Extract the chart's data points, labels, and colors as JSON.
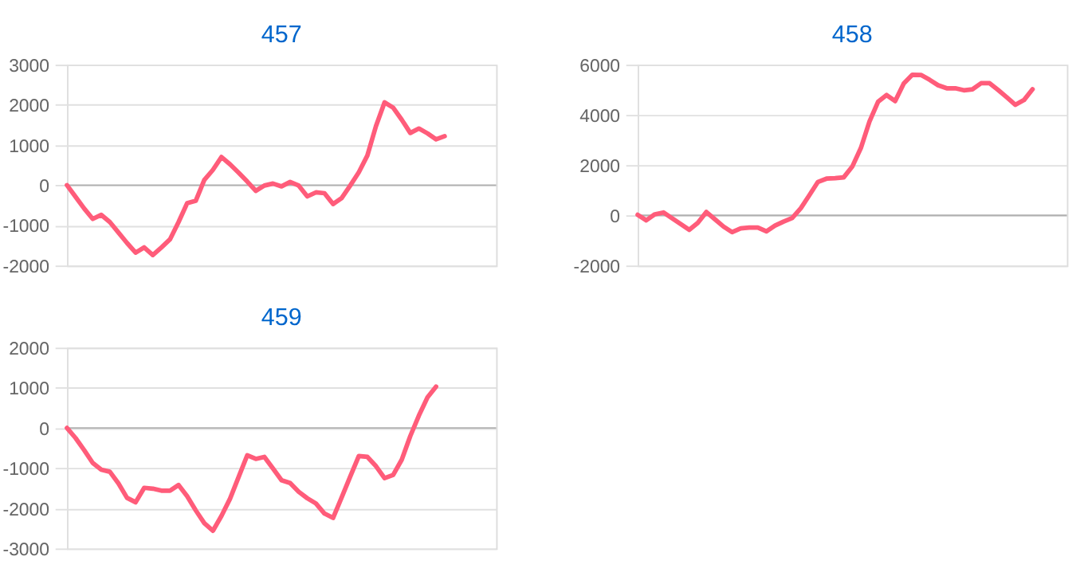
{
  "chart_data": [
    {
      "type": "line",
      "title": "457",
      "categories": [
        null,
        null,
        null,
        null,
        null,
        null,
        null,
        null,
        null,
        null,
        null,
        null,
        null,
        null,
        null,
        null,
        null,
        null,
        null,
        null,
        null,
        null,
        null,
        null,
        null,
        null,
        null,
        null,
        null,
        null,
        null,
        null,
        null,
        null,
        null,
        null,
        null,
        null,
        null,
        null,
        null,
        null,
        null,
        null,
        null,
        null,
        null,
        null,
        null,
        null,
        null
      ],
      "series": [
        {
          "color": "#ff5c7a",
          "values": [
            0,
            -290,
            -580,
            -840,
            -740,
            -920,
            -1180,
            -1440,
            -1680,
            -1550,
            -1740,
            -1550,
            -1350,
            -920,
            -450,
            -390,
            130,
            380,
            700,
            520,
            310,
            90,
            -140,
            -10,
            40,
            -30,
            80,
            -10,
            -280,
            -180,
            -200,
            -470,
            -320,
            -10,
            320,
            740,
            1470,
            2060,
            1930,
            1630,
            1300,
            1410,
            1290,
            1140,
            1220,
            null,
            null,
            null,
            null,
            null,
            null
          ]
        }
      ],
      "ylim": [
        -2000,
        3000
      ],
      "yticks": [
        -2000,
        -1000,
        0,
        1000,
        2000,
        3000
      ],
      "grid": "y",
      "tick_labels": "y",
      "marker": "none",
      "line_style": "solid",
      "ref_lines": [
        {
          "axis": "y",
          "value": 0,
          "color": "#b0b0b0"
        }
      ]
    },
    {
      "type": "line",
      "title": "458",
      "categories": [
        null,
        null,
        null,
        null,
        null,
        null,
        null,
        null,
        null,
        null,
        null,
        null,
        null,
        null,
        null,
        null,
        null,
        null,
        null,
        null,
        null,
        null,
        null,
        null,
        null,
        null,
        null,
        null,
        null,
        null,
        null,
        null,
        null,
        null,
        null,
        null,
        null,
        null,
        null,
        null,
        null,
        null,
        null,
        null,
        null,
        null,
        null,
        null,
        null,
        null,
        null
      ],
      "series": [
        {
          "color": "#ff5c7a",
          "values": [
            20,
            -200,
            40,
            110,
            -120,
            -350,
            -580,
            -300,
            130,
            -160,
            -450,
            -670,
            -520,
            -490,
            -490,
            -640,
            -410,
            -250,
            -110,
            280,
            800,
            1330,
            1460,
            1480,
            1510,
            1940,
            2680,
            3730,
            4520,
            4790,
            4550,
            5250,
            5600,
            5590,
            5400,
            5180,
            5060,
            5060,
            4980,
            5020,
            5260,
            5260,
            4990,
            4700,
            4400,
            4590,
            5020,
            null,
            null,
            null,
            null
          ]
        }
      ],
      "ylim": [
        -2000,
        6000
      ],
      "yticks": [
        -2000,
        0,
        2000,
        4000,
        6000
      ],
      "grid": "y",
      "tick_labels": "y",
      "marker": "none",
      "line_style": "solid",
      "ref_lines": [
        {
          "axis": "y",
          "value": 0,
          "color": "#b0b0b0"
        }
      ]
    },
    {
      "type": "line",
      "title": "459",
      "categories": [
        null,
        null,
        null,
        null,
        null,
        null,
        null,
        null,
        null,
        null,
        null,
        null,
        null,
        null,
        null,
        null,
        null,
        null,
        null,
        null,
        null,
        null,
        null,
        null,
        null,
        null,
        null,
        null,
        null,
        null,
        null,
        null,
        null,
        null,
        null,
        null,
        null,
        null,
        null,
        null,
        null,
        null,
        null,
        null,
        null,
        null,
        null,
        null,
        null,
        null,
        null
      ],
      "series": [
        {
          "color": "#ff5c7a",
          "values": [
            0,
            -250,
            -550,
            -870,
            -1040,
            -1090,
            -1380,
            -1740,
            -1850,
            -1490,
            -1510,
            -1560,
            -1560,
            -1420,
            -1700,
            -2050,
            -2370,
            -2560,
            -2190,
            -1760,
            -1220,
            -680,
            -770,
            -720,
            -1010,
            -1300,
            -1370,
            -1590,
            -1750,
            -1880,
            -2130,
            -2240,
            -1730,
            -1210,
            -700,
            -720,
            -950,
            -1250,
            -1170,
            -790,
            -200,
            310,
            760,
            1030,
            null,
            null,
            null,
            null,
            null,
            null,
            null
          ]
        }
      ],
      "ylim": [
        -3000,
        2000
      ],
      "yticks": [
        -3000,
        -2000,
        -1000,
        0,
        1000,
        2000
      ],
      "grid": "y",
      "tick_labels": "y",
      "marker": "none",
      "line_style": "solid",
      "ref_lines": [
        {
          "axis": "y",
          "value": 0,
          "color": "#b0b0b0"
        }
      ]
    }
  ]
}
